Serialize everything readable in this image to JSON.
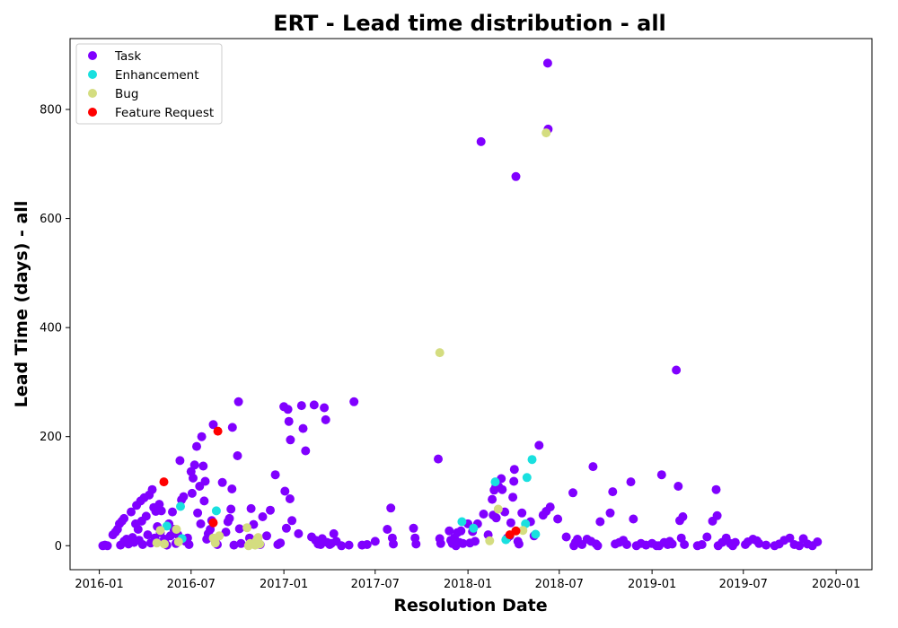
{
  "chart_data": {
    "type": "scatter",
    "title": "ERT - Lead time distribution - all",
    "xlabel": "Resolution Date",
    "ylabel": "Lead Time (days) - all",
    "x_ticks": [
      "2016-01",
      "2016-07",
      "2017-01",
      "2017-07",
      "2018-01",
      "2018-07",
      "2019-01",
      "2019-07",
      "2020-01"
    ],
    "y_ticks": [
      0,
      200,
      400,
      600,
      800
    ],
    "xlim": [
      "2015-11-04",
      "2020-03-12"
    ],
    "ylim": [
      -44,
      930
    ],
    "grid": false,
    "legend_position": "upper-left",
    "series": [
      {
        "name": "Task",
        "color": "#8000ff",
        "points": [
          [
            "2016-01-08",
            0
          ],
          [
            "2016-01-12",
            1
          ],
          [
            "2016-01-17",
            0
          ],
          [
            "2016-01-28",
            20
          ],
          [
            "2016-02-02",
            25
          ],
          [
            "2016-02-06",
            30
          ],
          [
            "2016-02-10",
            40
          ],
          [
            "2016-02-12",
            1
          ],
          [
            "2016-02-15",
            45
          ],
          [
            "2016-02-19",
            8
          ],
          [
            "2016-02-19",
            50
          ],
          [
            "2016-02-24",
            12
          ],
          [
            "2016-02-28",
            3
          ],
          [
            "2016-03-04",
            62
          ],
          [
            "2016-03-07",
            15
          ],
          [
            "2016-03-10",
            6
          ],
          [
            "2016-03-13",
            40
          ],
          [
            "2016-03-15",
            74
          ],
          [
            "2016-03-18",
            30
          ],
          [
            "2016-03-20",
            10
          ],
          [
            "2016-03-23",
            82
          ],
          [
            "2016-03-25",
            45
          ],
          [
            "2016-03-27",
            2
          ],
          [
            "2016-03-30",
            88
          ],
          [
            "2016-04-03",
            54
          ],
          [
            "2016-04-06",
            20
          ],
          [
            "2016-04-09",
            93
          ],
          [
            "2016-04-12",
            5
          ],
          [
            "2016-04-15",
            103
          ],
          [
            "2016-04-18",
            70
          ],
          [
            "2016-04-20",
            14
          ],
          [
            "2016-04-22",
            63
          ],
          [
            "2016-04-25",
            35
          ],
          [
            "2016-04-29",
            76
          ],
          [
            "2016-05-01",
            24
          ],
          [
            "2016-05-03",
            64
          ],
          [
            "2016-05-06",
            8
          ],
          [
            "2016-05-10",
            12
          ],
          [
            "2016-05-14",
            1
          ],
          [
            "2016-05-18",
            40
          ],
          [
            "2016-05-21",
            18
          ],
          [
            "2016-05-25",
            62
          ],
          [
            "2016-05-28",
            30
          ],
          [
            "2016-06-01",
            4
          ],
          [
            "2016-06-05",
            20
          ],
          [
            "2016-06-09",
            156
          ],
          [
            "2016-06-12",
            84
          ],
          [
            "2016-06-16",
            90
          ],
          [
            "2016-06-20",
            8
          ],
          [
            "2016-06-24",
            14
          ],
          [
            "2016-06-27",
            2
          ],
          [
            "2016-07-01",
            136
          ],
          [
            "2016-07-03",
            96
          ],
          [
            "2016-07-05",
            124
          ],
          [
            "2016-07-08",
            148
          ],
          [
            "2016-07-12",
            182
          ],
          [
            "2016-07-14",
            60
          ],
          [
            "2016-07-18",
            109
          ],
          [
            "2016-07-20",
            40
          ],
          [
            "2016-07-22",
            200
          ],
          [
            "2016-07-25",
            146
          ],
          [
            "2016-07-27",
            82
          ],
          [
            "2016-07-29",
            118
          ],
          [
            "2016-08-01",
            12
          ],
          [
            "2016-08-04",
            22
          ],
          [
            "2016-08-08",
            30
          ],
          [
            "2016-08-11",
            46
          ],
          [
            "2016-08-14",
            222
          ],
          [
            "2016-08-18",
            8
          ],
          [
            "2016-08-22",
            2
          ],
          [
            "2016-09-01",
            116
          ],
          [
            "2016-09-08",
            25
          ],
          [
            "2016-09-12",
            44
          ],
          [
            "2016-09-15",
            50
          ],
          [
            "2016-09-18",
            67
          ],
          [
            "2016-09-20",
            104
          ],
          [
            "2016-09-21",
            217
          ],
          [
            "2016-09-24",
            1
          ],
          [
            "2016-10-01",
            165
          ],
          [
            "2016-10-03",
            264
          ],
          [
            "2016-10-05",
            31
          ],
          [
            "2016-10-08",
            4
          ],
          [
            "2016-10-25",
            14
          ],
          [
            "2016-10-28",
            68
          ],
          [
            "2016-11-02",
            39
          ],
          [
            "2016-11-10",
            8
          ],
          [
            "2016-11-15",
            2
          ],
          [
            "2016-11-20",
            53
          ],
          [
            "2016-11-28",
            18
          ],
          [
            "2016-12-05",
            65
          ],
          [
            "2016-12-15",
            130
          ],
          [
            "2016-12-20",
            2
          ],
          [
            "2016-12-25",
            5
          ],
          [
            "2017-01-01",
            255
          ],
          [
            "2017-01-03",
            100
          ],
          [
            "2017-01-06",
            32
          ],
          [
            "2017-01-09",
            250
          ],
          [
            "2017-01-11",
            228
          ],
          [
            "2017-01-13",
            86
          ],
          [
            "2017-01-14",
            194
          ],
          [
            "2017-01-17",
            46
          ],
          [
            "2017-01-30",
            22
          ],
          [
            "2017-02-05",
            257
          ],
          [
            "2017-02-08",
            215
          ],
          [
            "2017-02-13",
            174
          ],
          [
            "2017-02-25",
            16
          ],
          [
            "2017-03-02",
            258
          ],
          [
            "2017-03-05",
            10
          ],
          [
            "2017-03-10",
            3
          ],
          [
            "2017-03-15",
            2
          ],
          [
            "2017-03-18",
            13
          ],
          [
            "2017-03-22",
            253
          ],
          [
            "2017-03-25",
            231
          ],
          [
            "2017-03-28",
            6
          ],
          [
            "2017-04-02",
            2
          ],
          [
            "2017-04-05",
            4
          ],
          [
            "2017-04-10",
            22
          ],
          [
            "2017-04-15",
            8
          ],
          [
            "2017-04-25",
            0
          ],
          [
            "2017-05-10",
            1
          ],
          [
            "2017-05-20",
            264
          ],
          [
            "2017-06-05",
            1
          ],
          [
            "2017-06-15",
            2
          ],
          [
            "2017-07-01",
            8
          ],
          [
            "2017-07-25",
            30
          ],
          [
            "2017-08-01",
            69
          ],
          [
            "2017-08-04",
            14
          ],
          [
            "2017-08-06",
            3
          ],
          [
            "2017-09-15",
            32
          ],
          [
            "2017-09-18",
            14
          ],
          [
            "2017-09-20",
            3
          ],
          [
            "2017-11-03",
            159
          ],
          [
            "2017-11-06",
            13
          ],
          [
            "2017-11-08",
            4
          ],
          [
            "2017-11-25",
            27
          ],
          [
            "2017-11-28",
            10
          ],
          [
            "2017-12-01",
            4
          ],
          [
            "2017-12-05",
            14
          ],
          [
            "2017-12-08",
            0
          ],
          [
            "2017-12-11",
            24
          ],
          [
            "2017-12-15",
            6
          ],
          [
            "2017-12-18",
            27
          ],
          [
            "2017-12-22",
            4
          ],
          [
            "2018-01-01",
            40
          ],
          [
            "2018-01-05",
            5
          ],
          [
            "2018-01-10",
            26
          ],
          [
            "2018-01-15",
            8
          ],
          [
            "2018-01-20",
            40
          ],
          [
            "2018-01-27",
            741
          ],
          [
            "2018-02-01",
            58
          ],
          [
            "2018-02-10",
            20
          ],
          [
            "2018-02-18",
            85
          ],
          [
            "2018-02-20",
            56
          ],
          [
            "2018-02-22",
            102
          ],
          [
            "2018-02-25",
            108
          ],
          [
            "2018-02-26",
            51
          ],
          [
            "2018-03-03",
            108
          ],
          [
            "2018-03-08",
            123
          ],
          [
            "2018-03-10",
            103
          ],
          [
            "2018-03-15",
            62
          ],
          [
            "2018-03-20",
            14
          ],
          [
            "2018-03-25",
            18
          ],
          [
            "2018-03-27",
            42
          ],
          [
            "2018-03-31",
            89
          ],
          [
            "2018-04-02",
            118
          ],
          [
            "2018-04-03",
            140
          ],
          [
            "2018-04-06",
            677
          ],
          [
            "2018-04-10",
            8
          ],
          [
            "2018-04-12",
            3
          ],
          [
            "2018-04-18",
            60
          ],
          [
            "2018-05-05",
            44
          ],
          [
            "2018-05-12",
            18
          ],
          [
            "2018-05-22",
            184
          ],
          [
            "2018-05-30",
            56
          ],
          [
            "2018-06-05",
            63
          ],
          [
            "2018-06-08",
            885
          ],
          [
            "2018-06-09",
            764
          ],
          [
            "2018-06-13",
            71
          ],
          [
            "2018-06-28",
            49
          ],
          [
            "2018-07-15",
            16
          ],
          [
            "2018-07-28",
            97
          ],
          [
            "2018-07-30",
            0
          ],
          [
            "2018-08-02",
            6
          ],
          [
            "2018-08-06",
            12
          ],
          [
            "2018-08-15",
            2
          ],
          [
            "2018-08-25",
            12
          ],
          [
            "2018-09-02",
            8
          ],
          [
            "2018-09-06",
            145
          ],
          [
            "2018-09-12",
            3
          ],
          [
            "2018-09-15",
            0
          ],
          [
            "2018-09-20",
            44
          ],
          [
            "2018-10-10",
            60
          ],
          [
            "2018-10-15",
            99
          ],
          [
            "2018-10-20",
            3
          ],
          [
            "2018-10-28",
            6
          ],
          [
            "2018-11-05",
            10
          ],
          [
            "2018-11-12",
            2
          ],
          [
            "2018-11-20",
            117
          ],
          [
            "2018-11-25",
            49
          ],
          [
            "2018-12-01",
            0
          ],
          [
            "2018-12-10",
            4
          ],
          [
            "2018-12-20",
            1
          ],
          [
            "2019-01-01",
            4
          ],
          [
            "2019-01-10",
            0
          ],
          [
            "2019-01-15",
            0
          ],
          [
            "2019-01-20",
            130
          ],
          [
            "2019-01-25",
            6
          ],
          [
            "2019-02-01",
            2
          ],
          [
            "2019-02-05",
            8
          ],
          [
            "2019-02-10",
            3
          ],
          [
            "2019-02-18",
            322
          ],
          [
            "2019-02-22",
            109
          ],
          [
            "2019-02-25",
            46
          ],
          [
            "2019-02-28",
            14
          ],
          [
            "2019-03-03",
            53
          ],
          [
            "2019-03-06",
            2
          ],
          [
            "2019-04-01",
            0
          ],
          [
            "2019-04-10",
            2
          ],
          [
            "2019-04-20",
            16
          ],
          [
            "2019-05-01",
            45
          ],
          [
            "2019-05-08",
            103
          ],
          [
            "2019-05-10",
            55
          ],
          [
            "2019-05-12",
            0
          ],
          [
            "2019-05-20",
            6
          ],
          [
            "2019-05-28",
            14
          ],
          [
            "2019-06-05",
            4
          ],
          [
            "2019-06-10",
            0
          ],
          [
            "2019-06-15",
            6
          ],
          [
            "2019-07-05",
            2
          ],
          [
            "2019-07-10",
            7
          ],
          [
            "2019-07-20",
            12
          ],
          [
            "2019-07-28",
            9
          ],
          [
            "2019-08-01",
            4
          ],
          [
            "2019-08-15",
            1
          ],
          [
            "2019-09-01",
            0
          ],
          [
            "2019-09-10",
            3
          ],
          [
            "2019-09-20",
            10
          ],
          [
            "2019-10-01",
            14
          ],
          [
            "2019-10-10",
            2
          ],
          [
            "2019-10-20",
            0
          ],
          [
            "2019-10-28",
            13
          ],
          [
            "2019-11-05",
            3
          ],
          [
            "2019-11-15",
            0
          ],
          [
            "2019-11-25",
            7
          ]
        ]
      },
      {
        "name": "Enhancement",
        "color": "#19e0df",
        "points": [
          [
            "2016-05-14",
            36
          ],
          [
            "2016-06-10",
            72
          ],
          [
            "2016-06-13",
            13
          ],
          [
            "2016-08-20",
            64
          ],
          [
            "2017-12-20",
            44
          ],
          [
            "2018-01-12",
            32
          ],
          [
            "2018-02-24",
            117
          ],
          [
            "2018-03-17",
            11
          ],
          [
            "2018-04-25",
            40
          ],
          [
            "2018-04-28",
            125
          ],
          [
            "2018-05-08",
            158
          ],
          [
            "2018-05-15",
            21
          ]
        ]
      },
      {
        "name": "Bug",
        "color": "#d4dd80",
        "points": [
          [
            "2016-04-24",
            5
          ],
          [
            "2016-05-01",
            28
          ],
          [
            "2016-05-09",
            3
          ],
          [
            "2016-06-02",
            30
          ],
          [
            "2016-06-06",
            7
          ],
          [
            "2016-08-14",
            14
          ],
          [
            "2016-08-18",
            5
          ],
          [
            "2016-08-26",
            18
          ],
          [
            "2016-10-20",
            33
          ],
          [
            "2016-10-23",
            0
          ],
          [
            "2016-10-26",
            4
          ],
          [
            "2016-11-05",
            1
          ],
          [
            "2016-11-08",
            10
          ],
          [
            "2016-11-11",
            15
          ],
          [
            "2016-11-14",
            3
          ],
          [
            "2017-11-06",
            354
          ],
          [
            "2018-02-13",
            9
          ],
          [
            "2018-03-02",
            67
          ],
          [
            "2018-04-20",
            28
          ],
          [
            "2018-06-05",
            757
          ]
        ]
      },
      {
        "name": "Feature Request",
        "color": "#ff0000",
        "points": [
          [
            "2016-05-08",
            117
          ],
          [
            "2016-08-14",
            42
          ],
          [
            "2016-08-23",
            210
          ],
          [
            "2018-03-25",
            20
          ],
          [
            "2018-04-06",
            27
          ]
        ]
      }
    ]
  }
}
